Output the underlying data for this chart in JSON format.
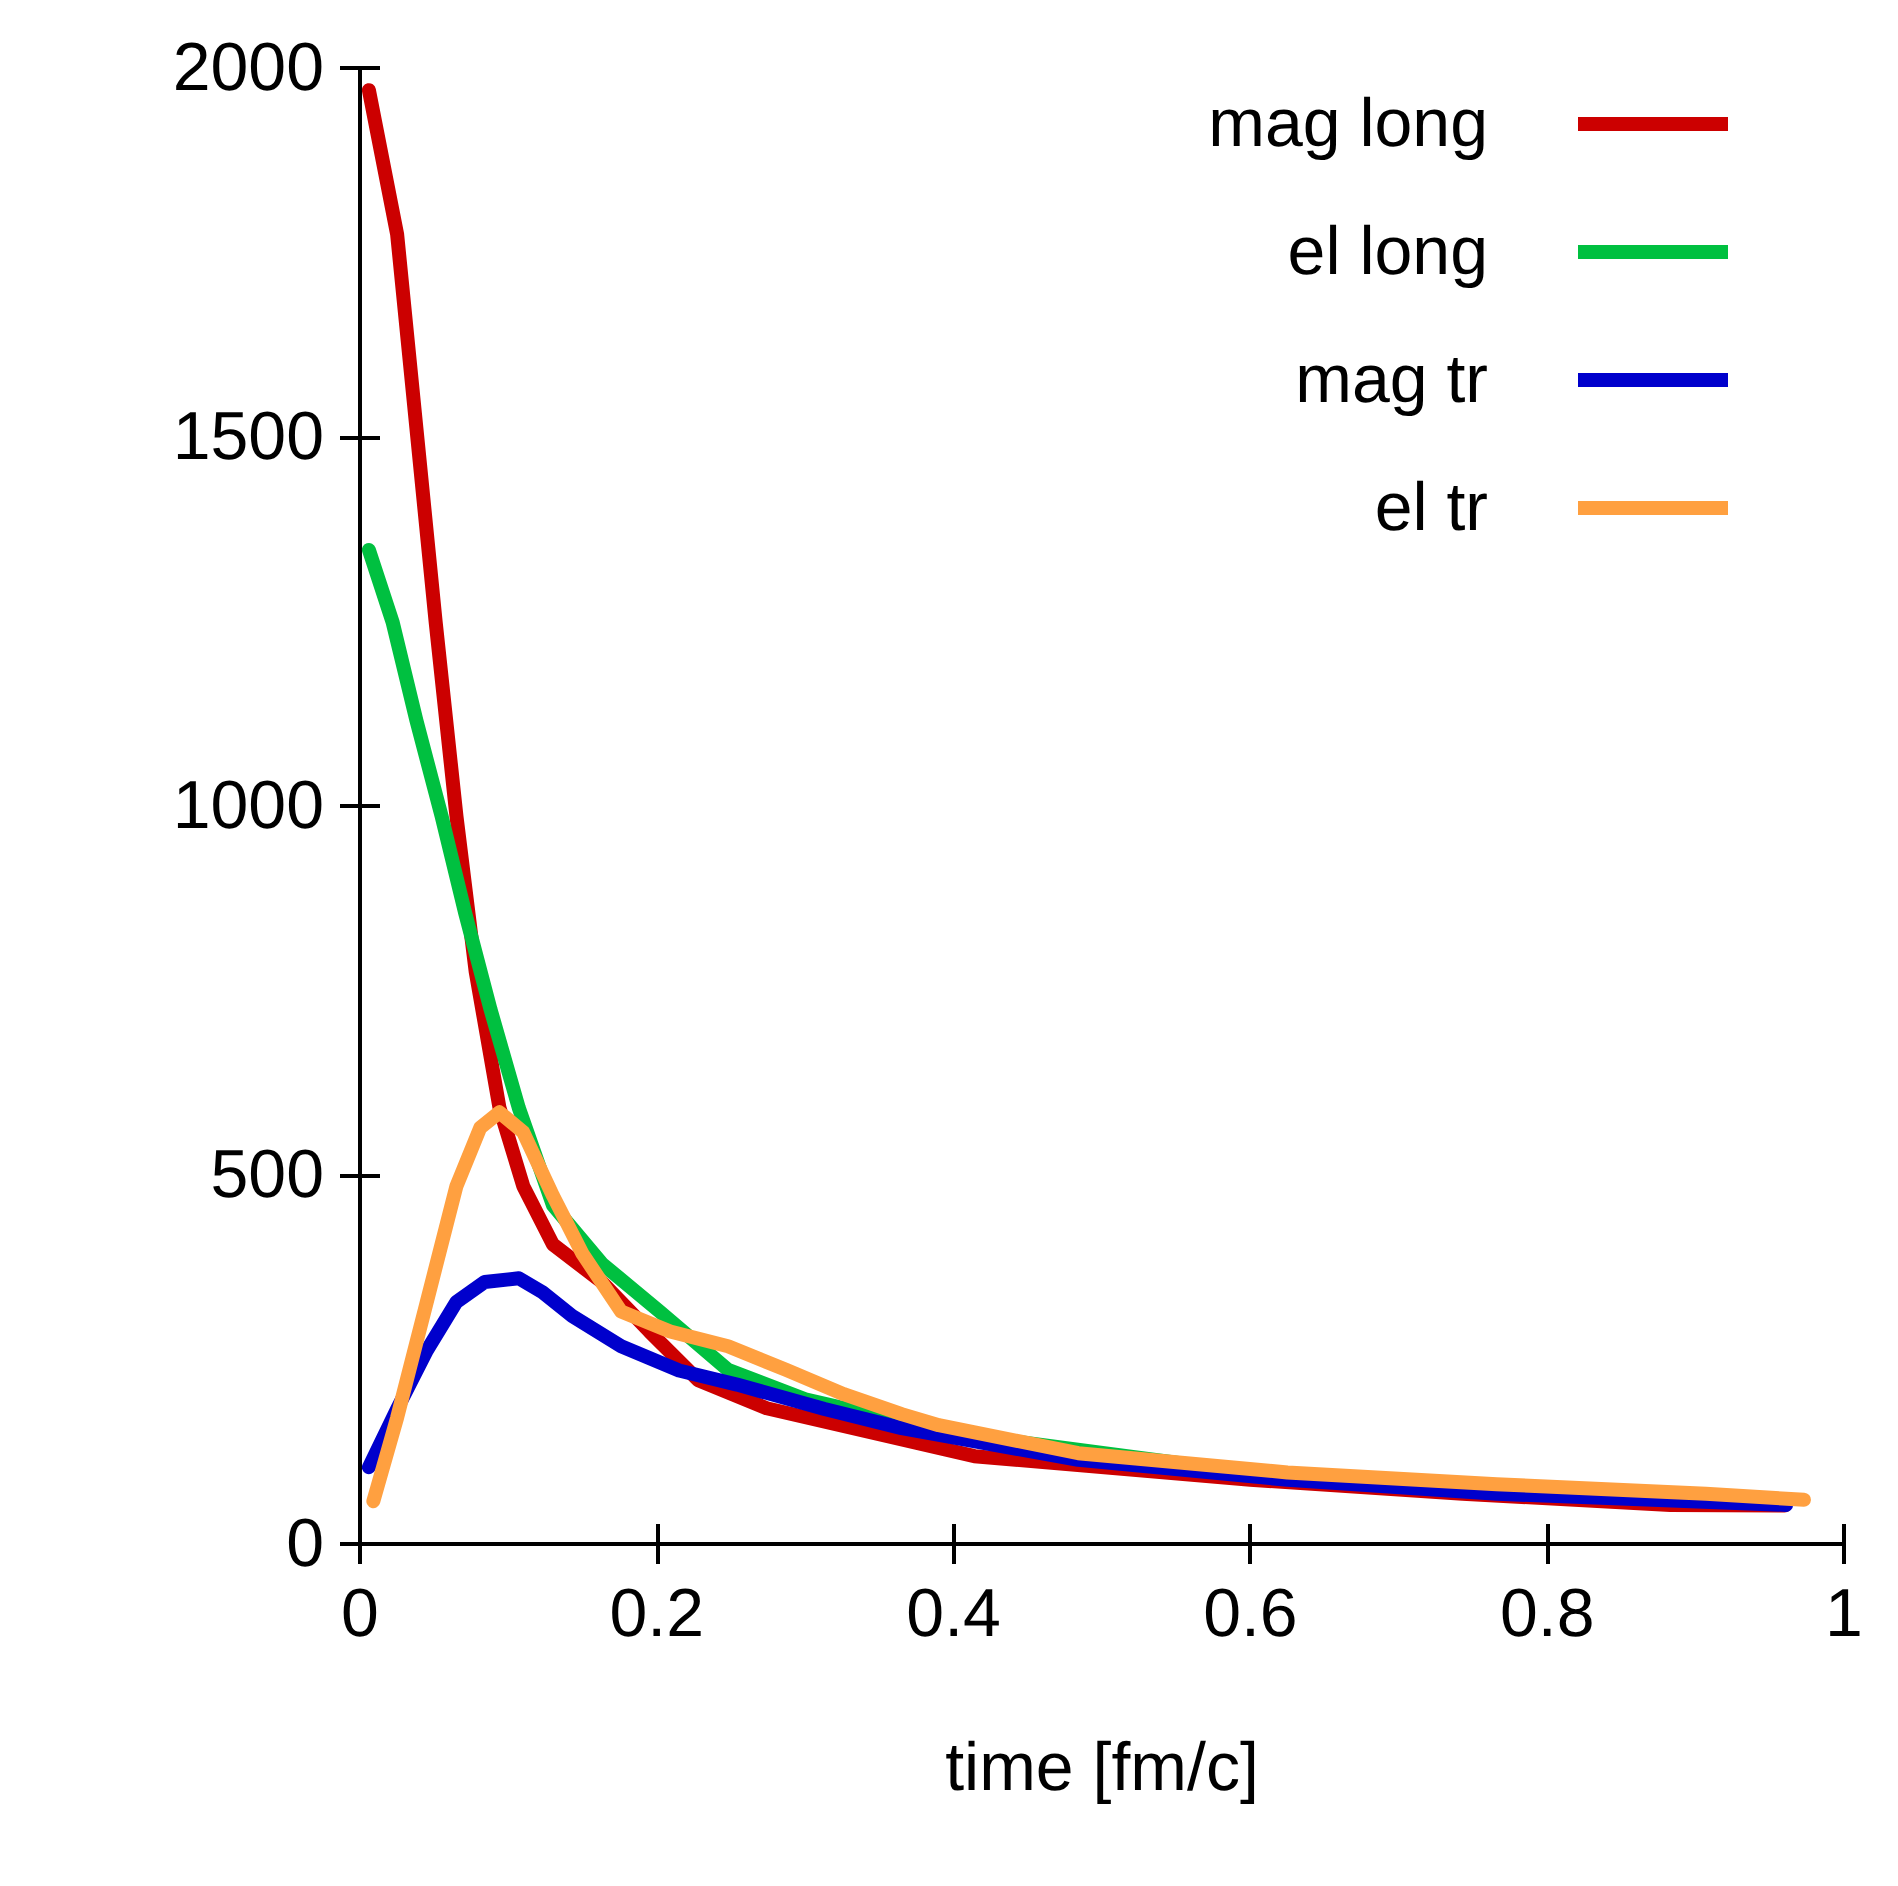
{
  "chart_data": {
    "type": "line",
    "xlabel": "time [fm/c]",
    "xlim": [
      0,
      1
    ],
    "xticks": [
      0,
      0.2,
      0.4,
      0.6,
      0.8,
      1
    ],
    "ylim": [
      0,
      2000
    ],
    "yticks": [
      0,
      500,
      1000,
      1500,
      2000
    ],
    "grid": false,
    "legend": "top right",
    "marker": "none",
    "line_style": "solid",
    "series": [
      {
        "name": "mag long",
        "color": "#cc0000",
        "x": [
          0.006,
          0.025,
          0.038,
          0.051,
          0.065,
          0.078,
          0.094,
          0.11,
          0.13,
          0.163,
          0.195,
          0.228,
          0.274,
          0.414,
          0.6,
          0.743,
          0.883,
          0.96
        ],
        "values": [
          1970,
          1775,
          1512,
          1249,
          986,
          775,
          591,
          485,
          406,
          355,
          288,
          222,
          184,
          119,
          87,
          68,
          53,
          52
        ]
      },
      {
        "name": "el long",
        "color": "#00c040",
        "x": [
          0.006,
          0.022,
          0.038,
          0.055,
          0.071,
          0.088,
          0.107,
          0.13,
          0.163,
          0.202,
          0.248,
          0.3,
          0.4,
          0.6,
          0.8,
          0.96
        ],
        "values": [
          1347,
          1249,
          1116,
          986,
          854,
          724,
          591,
          459,
          380,
          315,
          236,
          196,
          150,
          97,
          72,
          58
        ]
      },
      {
        "name": "mag tr",
        "color": "#0000cc",
        "x": [
          0.006,
          0.025,
          0.045,
          0.065,
          0.084,
          0.107,
          0.123,
          0.143,
          0.176,
          0.215,
          0.254,
          0.313,
          0.365,
          0.484,
          0.625,
          0.766,
          0.961
        ],
        "values": [
          104,
          183,
          262,
          328,
          355,
          360,
          341,
          309,
          268,
          235,
          216,
          183,
          157,
          114,
          87,
          68,
          53
        ]
      },
      {
        "name": "el tr",
        "color": "#ffa040",
        "x": [
          0.009,
          0.025,
          0.045,
          0.065,
          0.081,
          0.094,
          0.11,
          0.13,
          0.15,
          0.176,
          0.209,
          0.248,
          0.287,
          0.326,
          0.365,
          0.39,
          0.484,
          0.625,
          0.766,
          0.907,
          0.973
        ],
        "values": [
          58,
          171,
          328,
          485,
          564,
          585,
          558,
          472,
          393,
          315,
          288,
          268,
          236,
          203,
          176,
          161,
          123,
          97,
          81,
          68,
          60
        ]
      }
    ]
  }
}
